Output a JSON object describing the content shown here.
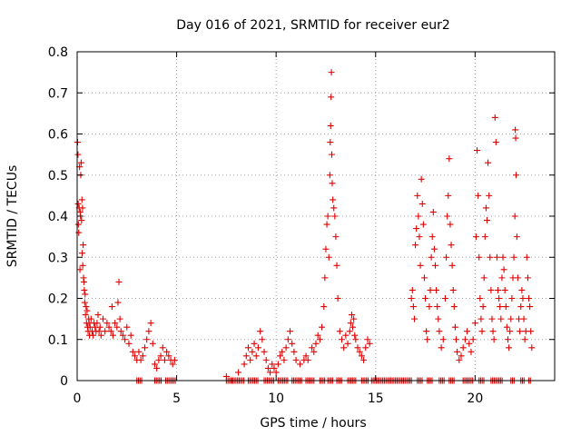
{
  "chart_data": {
    "type": "scatter",
    "title": "Day 016 of 2021, SRMTID for receiver eur2",
    "xlabel": "GPS time / hours",
    "ylabel": "SRMTID / TECUs",
    "xlim": [
      0,
      24
    ],
    "ylim": [
      0,
      0.8
    ],
    "xticks": [
      0,
      5,
      10,
      15,
      20
    ],
    "yticks": [
      0,
      0.1,
      0.2,
      0.3,
      0.4,
      0.5,
      0.6,
      0.7,
      0.8
    ],
    "xtick_labels": [
      "0",
      "5",
      "10",
      "15",
      "20"
    ],
    "ytick_labels": [
      "0",
      "0.1",
      "0.2",
      "0.3",
      "0.4",
      "0.5",
      "0.6",
      "0.7",
      "0.8"
    ],
    "grid": true,
    "marker": "+",
    "color": "#e00000",
    "series": [
      {
        "name": "SRMTID",
        "points": [
          [
            0.02,
            0.58
          ],
          [
            0.04,
            0.55
          ],
          [
            0.05,
            0.43
          ],
          [
            0.06,
            0.38
          ],
          [
            0.08,
            0.36
          ],
          [
            0.1,
            0.42
          ],
          [
            0.12,
            0.52
          ],
          [
            0.14,
            0.27
          ],
          [
            0.15,
            0.41
          ],
          [
            0.17,
            0.4
          ],
          [
            0.18,
            0.5
          ],
          [
            0.2,
            0.53
          ],
          [
            0.22,
            0.39
          ],
          [
            0.24,
            0.44
          ],
          [
            0.25,
            0.31
          ],
          [
            0.27,
            0.42
          ],
          [
            0.28,
            0.28
          ],
          [
            0.3,
            0.33
          ],
          [
            0.32,
            0.25
          ],
          [
            0.34,
            0.24
          ],
          [
            0.36,
            0.22
          ],
          [
            0.38,
            0.19
          ],
          [
            0.4,
            0.21
          ],
          [
            0.42,
            0.16
          ],
          [
            0.45,
            0.18
          ],
          [
            0.47,
            0.14
          ],
          [
            0.5,
            0.17
          ],
          [
            0.52,
            0.13
          ],
          [
            0.55,
            0.12
          ],
          [
            0.58,
            0.15
          ],
          [
            0.6,
            0.14
          ],
          [
            0.62,
            0.11
          ],
          [
            0.65,
            0.13
          ],
          [
            0.7,
            0.15
          ],
          [
            0.75,
            0.12
          ],
          [
            0.8,
            0.11
          ],
          [
            0.85,
            0.14
          ],
          [
            0.9,
            0.13
          ],
          [
            0.95,
            0.12
          ],
          [
            1.0,
            0.14
          ],
          [
            1.05,
            0.16
          ],
          [
            1.1,
            0.12
          ],
          [
            1.15,
            0.13
          ],
          [
            1.2,
            0.11
          ],
          [
            1.3,
            0.15
          ],
          [
            1.4,
            0.12
          ],
          [
            1.5,
            0.14
          ],
          [
            1.6,
            0.13
          ],
          [
            1.7,
            0.12
          ],
          [
            1.75,
            0.18
          ],
          [
            1.8,
            0.11
          ],
          [
            1.9,
            0.14
          ],
          [
            2.0,
            0.13
          ],
          [
            2.05,
            0.19
          ],
          [
            2.1,
            0.24
          ],
          [
            2.15,
            0.15
          ],
          [
            2.2,
            0.12
          ],
          [
            2.3,
            0.11
          ],
          [
            2.4,
            0.1
          ],
          [
            2.5,
            0.13
          ],
          [
            2.6,
            0.09
          ],
          [
            2.7,
            0.11
          ],
          [
            2.8,
            0.07
          ],
          [
            2.9,
            0.06
          ],
          [
            3.0,
            0.05
          ],
          [
            3.1,
            0.07
          ],
          [
            3.2,
            0.05
          ],
          [
            3.3,
            0.06
          ],
          [
            3.4,
            0.08
          ],
          [
            3.5,
            0.1
          ],
          [
            3.6,
            0.12
          ],
          [
            3.7,
            0.14
          ],
          [
            3.8,
            0.09
          ],
          [
            3.9,
            0.04
          ],
          [
            4.0,
            0.03
          ],
          [
            4.1,
            0.05
          ],
          [
            4.2,
            0.06
          ],
          [
            4.3,
            0.08
          ],
          [
            4.4,
            0.05
          ],
          [
            4.5,
            0.07
          ],
          [
            4.6,
            0.06
          ],
          [
            4.7,
            0.05
          ],
          [
            4.8,
            0.04
          ],
          [
            4.9,
            0.05
          ],
          [
            7.5,
            0.01
          ],
          [
            7.8,
            0.0
          ],
          [
            8.1,
            0.02
          ],
          [
            8.4,
            0.04
          ],
          [
            8.5,
            0.06
          ],
          [
            8.6,
            0.08
          ],
          [
            8.7,
            0.05
          ],
          [
            8.8,
            0.07
          ],
          [
            8.9,
            0.09
          ],
          [
            9.0,
            0.06
          ],
          [
            9.1,
            0.08
          ],
          [
            9.2,
            0.12
          ],
          [
            9.3,
            0.1
          ],
          [
            9.4,
            0.07
          ],
          [
            9.5,
            0.05
          ],
          [
            9.6,
            0.03
          ],
          [
            9.7,
            0.02
          ],
          [
            9.8,
            0.04
          ],
          [
            9.9,
            0.03
          ],
          [
            10.0,
            0.02
          ],
          [
            10.1,
            0.04
          ],
          [
            10.2,
            0.06
          ],
          [
            10.3,
            0.07
          ],
          [
            10.4,
            0.05
          ],
          [
            10.5,
            0.08
          ],
          [
            10.6,
            0.1
          ],
          [
            10.7,
            0.12
          ],
          [
            10.8,
            0.09
          ],
          [
            10.9,
            0.07
          ],
          [
            11.0,
            0.05
          ],
          [
            11.2,
            0.04
          ],
          [
            11.4,
            0.05
          ],
          [
            11.5,
            0.06
          ],
          [
            11.6,
            0.05
          ],
          [
            11.8,
            0.08
          ],
          [
            11.9,
            0.07
          ],
          [
            12.0,
            0.09
          ],
          [
            12.1,
            0.11
          ],
          [
            12.2,
            0.1
          ],
          [
            12.3,
            0.13
          ],
          [
            12.4,
            0.18
          ],
          [
            12.45,
            0.25
          ],
          [
            12.5,
            0.32
          ],
          [
            12.55,
            0.38
          ],
          [
            12.6,
            0.4
          ],
          [
            12.65,
            0.3
          ],
          [
            12.7,
            0.5
          ],
          [
            12.72,
            0.58
          ],
          [
            12.74,
            0.62
          ],
          [
            12.76,
            0.69
          ],
          [
            12.78,
            0.75
          ],
          [
            12.8,
            0.55
          ],
          [
            12.82,
            0.48
          ],
          [
            12.85,
            0.44
          ],
          [
            12.9,
            0.42
          ],
          [
            12.95,
            0.4
          ],
          [
            13.0,
            0.35
          ],
          [
            13.05,
            0.28
          ],
          [
            13.1,
            0.2
          ],
          [
            13.2,
            0.12
          ],
          [
            13.3,
            0.1
          ],
          [
            13.4,
            0.08
          ],
          [
            13.5,
            0.11
          ],
          [
            13.6,
            0.09
          ],
          [
            13.7,
            0.12
          ],
          [
            13.75,
            0.14
          ],
          [
            13.8,
            0.16
          ],
          [
            13.85,
            0.13
          ],
          [
            13.9,
            0.15
          ],
          [
            13.95,
            0.11
          ],
          [
            14.0,
            0.1
          ],
          [
            14.1,
            0.08
          ],
          [
            14.2,
            0.07
          ],
          [
            14.3,
            0.06
          ],
          [
            14.4,
            0.05
          ],
          [
            14.5,
            0.08
          ],
          [
            14.6,
            0.1
          ],
          [
            14.7,
            0.09
          ],
          [
            16.8,
            0.2
          ],
          [
            16.85,
            0.22
          ],
          [
            16.9,
            0.18
          ],
          [
            16.95,
            0.15
          ],
          [
            17.0,
            0.33
          ],
          [
            17.05,
            0.37
          ],
          [
            17.1,
            0.45
          ],
          [
            17.15,
            0.4
          ],
          [
            17.2,
            0.35
          ],
          [
            17.25,
            0.28
          ],
          [
            17.3,
            0.49
          ],
          [
            17.35,
            0.43
          ],
          [
            17.4,
            0.38
          ],
          [
            17.45,
            0.25
          ],
          [
            17.5,
            0.2
          ],
          [
            17.55,
            0.12
          ],
          [
            17.6,
            0.1
          ],
          [
            17.7,
            0.18
          ],
          [
            17.75,
            0.22
          ],
          [
            17.8,
            0.3
          ],
          [
            17.85,
            0.35
          ],
          [
            17.9,
            0.41
          ],
          [
            17.95,
            0.32
          ],
          [
            18.0,
            0.28
          ],
          [
            18.05,
            0.22
          ],
          [
            18.1,
            0.18
          ],
          [
            18.15,
            0.15
          ],
          [
            18.2,
            0.12
          ],
          [
            18.3,
            0.08
          ],
          [
            18.4,
            0.1
          ],
          [
            18.5,
            0.2
          ],
          [
            18.55,
            0.3
          ],
          [
            18.6,
            0.4
          ],
          [
            18.65,
            0.45
          ],
          [
            18.7,
            0.54
          ],
          [
            18.75,
            0.38
          ],
          [
            18.8,
            0.33
          ],
          [
            18.85,
            0.28
          ],
          [
            18.9,
            0.22
          ],
          [
            18.95,
            0.18
          ],
          [
            19.0,
            0.13
          ],
          [
            19.05,
            0.1
          ],
          [
            19.1,
            0.07
          ],
          [
            19.2,
            0.05
          ],
          [
            19.3,
            0.06
          ],
          [
            19.4,
            0.08
          ],
          [
            19.5,
            0.1
          ],
          [
            19.6,
            0.12
          ],
          [
            19.7,
            0.09
          ],
          [
            19.8,
            0.07
          ],
          [
            19.9,
            0.1
          ],
          [
            20.0,
            0.14
          ],
          [
            20.05,
            0.35
          ],
          [
            20.1,
            0.56
          ],
          [
            20.15,
            0.45
          ],
          [
            20.2,
            0.3
          ],
          [
            20.25,
            0.2
          ],
          [
            20.3,
            0.15
          ],
          [
            20.35,
            0.12
          ],
          [
            20.4,
            0.18
          ],
          [
            20.45,
            0.25
          ],
          [
            20.5,
            0.35
          ],
          [
            20.55,
            0.42
          ],
          [
            20.6,
            0.39
          ],
          [
            20.65,
            0.53
          ],
          [
            20.7,
            0.45
          ],
          [
            20.75,
            0.3
          ],
          [
            20.8,
            0.22
          ],
          [
            20.85,
            0.15
          ],
          [
            20.9,
            0.12
          ],
          [
            20.95,
            0.1
          ],
          [
            21.0,
            0.64
          ],
          [
            21.05,
            0.58
          ],
          [
            21.1,
            0.3
          ],
          [
            21.15,
            0.22
          ],
          [
            21.2,
            0.2
          ],
          [
            21.25,
            0.18
          ],
          [
            21.3,
            0.15
          ],
          [
            21.35,
            0.25
          ],
          [
            21.4,
            0.3
          ],
          [
            21.45,
            0.27
          ],
          [
            21.5,
            0.22
          ],
          [
            21.55,
            0.18
          ],
          [
            21.6,
            0.13
          ],
          [
            21.65,
            0.1
          ],
          [
            21.7,
            0.08
          ],
          [
            21.75,
            0.12
          ],
          [
            21.8,
            0.15
          ],
          [
            21.85,
            0.2
          ],
          [
            21.9,
            0.25
          ],
          [
            21.95,
            0.3
          ],
          [
            22.0,
            0.4
          ],
          [
            22.02,
            0.61
          ],
          [
            22.04,
            0.59
          ],
          [
            22.06,
            0.5
          ],
          [
            22.1,
            0.35
          ],
          [
            22.15,
            0.25
          ],
          [
            22.2,
            0.15
          ],
          [
            22.25,
            0.12
          ],
          [
            22.3,
            0.18
          ],
          [
            22.35,
            0.22
          ],
          [
            22.4,
            0.2
          ],
          [
            22.45,
            0.15
          ],
          [
            22.5,
            0.1
          ],
          [
            22.55,
            0.12
          ],
          [
            22.6,
            0.3
          ],
          [
            22.65,
            0.25
          ],
          [
            22.7,
            0.2
          ],
          [
            22.75,
            0.18
          ],
          [
            22.8,
            0.12
          ],
          [
            22.85,
            0.08
          ]
        ],
        "zero_runs": [
          [
            3.0,
            3.25
          ],
          [
            3.9,
            4.25
          ],
          [
            4.45,
            5.0
          ],
          [
            7.5,
            8.4
          ],
          [
            8.6,
            9.1
          ],
          [
            9.4,
            9.95
          ],
          [
            10.1,
            10.6
          ],
          [
            10.8,
            11.3
          ],
          [
            11.5,
            11.9
          ],
          [
            12.2,
            12.45
          ],
          [
            12.6,
            12.85
          ],
          [
            13.05,
            13.3
          ],
          [
            13.6,
            14.0
          ],
          [
            14.3,
            14.65
          ],
          [
            14.8,
            16.8
          ],
          [
            17.1,
            17.4
          ],
          [
            17.6,
            17.85
          ],
          [
            18.2,
            18.5
          ],
          [
            18.7,
            19.0
          ],
          [
            19.4,
            19.9
          ],
          [
            20.2,
            20.5
          ],
          [
            20.8,
            21.4
          ],
          [
            21.8,
            22.0
          ],
          [
            22.3,
            22.5
          ],
          [
            22.7,
            22.85
          ]
        ]
      }
    ]
  }
}
